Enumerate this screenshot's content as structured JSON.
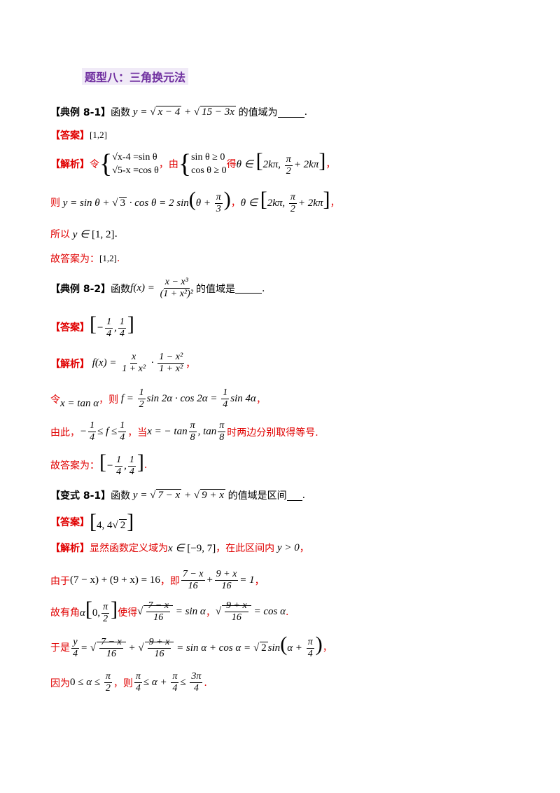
{
  "title": "题型八：三角换元法",
  "ex81": {
    "tag": "【典例 8-1】",
    "lead": "函数",
    "tail": "的值域为",
    "end": "."
  },
  "ans81": {
    "tag": "【答案】",
    "value": "[1,2]"
  },
  "sol81": {
    "tag": "【解析】",
    "ling": "令",
    "sys1a": "√x-4 =sin θ",
    "sys1b": "√5-x =cos θ",
    "you": "，由",
    "sys2a": "sin θ ≥ 0",
    "sys2b": "cos θ ≥ 0",
    "de": "得",
    "comma": "，",
    "ze": "则",
    "line3_comma": "，",
    "suoyi": "所以",
    "gudaan": "故答案为：",
    "final": "[1,2]"
  },
  "ex82": {
    "tag": "【典例 8-2】",
    "lead": "函数",
    "tail": "的值域是",
    "end": "."
  },
  "ans82": {
    "tag": "【答案】"
  },
  "sol82": {
    "tag": "【解析】",
    "ling": "令",
    "ze": "，则",
    "youci": "由此，",
    "dang": "，当",
    "shi": "时两边分别取得等号.",
    "gudaan": "故答案为："
  },
  "var81": {
    "tag": "【变式 8-1】",
    "lead": "函数",
    "tail": "的值域是区间",
    "end": "."
  },
  "ans_var": {
    "tag": "【答案】"
  },
  "sol_var": {
    "tag": "【解析】",
    "l1a": "显然函数定义域为",
    "l1b": "，在此区间内",
    "youyu": "由于",
    "ji": "，即",
    "gu": "故有角",
    "shide": "使得",
    "yushi": "于是",
    "yinwei": "因为",
    "ze": "，则"
  }
}
